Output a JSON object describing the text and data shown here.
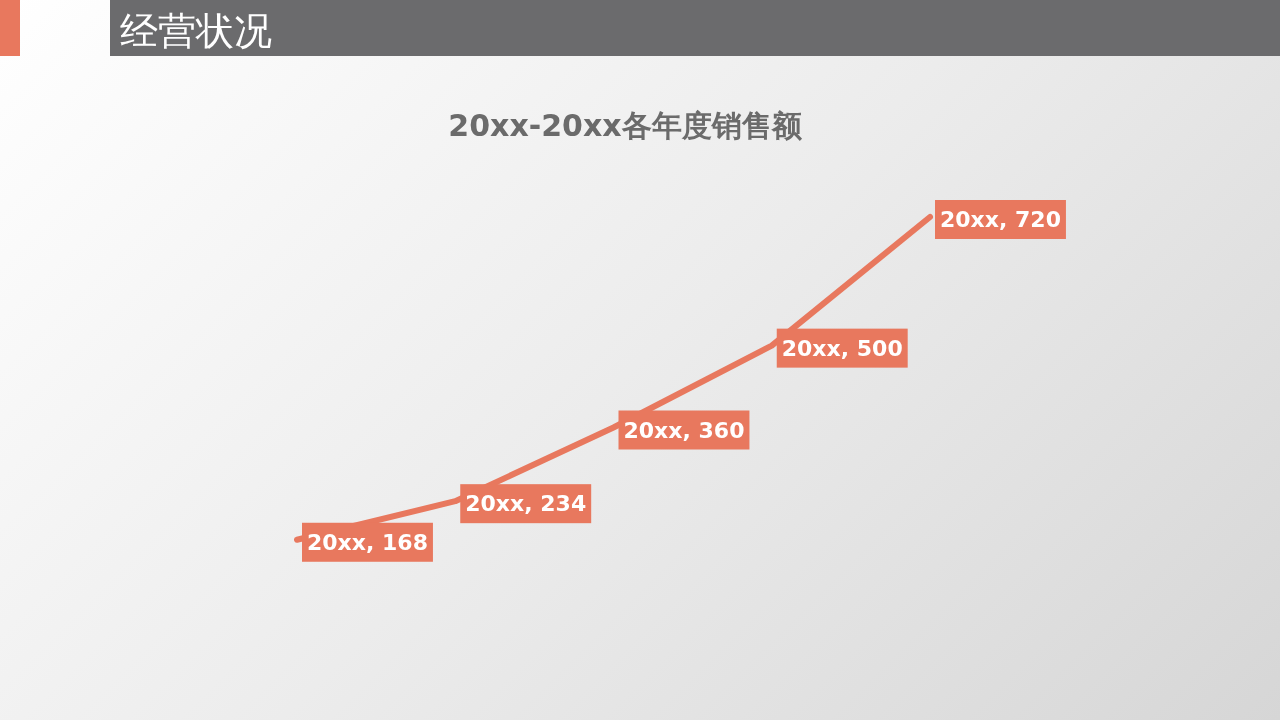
{
  "chart_data": {
    "type": "line",
    "title": "经营状况",
    "subtitle": "20xx-20xx各年度销售额",
    "categories": [
      null,
      null,
      null,
      null,
      null
    ],
    "series": [
      {
        "color": "#e8785e",
        "values": [
          168,
          234,
          360,
          500,
          720
        ],
        "value_labels": [
          "20xx, 168",
          "20xx, 234",
          "20xx, 360",
          "20xx, 500",
          "20xx, 720"
        ]
      }
    ],
    "marker": "none",
    "line_style": "solid"
  }
}
